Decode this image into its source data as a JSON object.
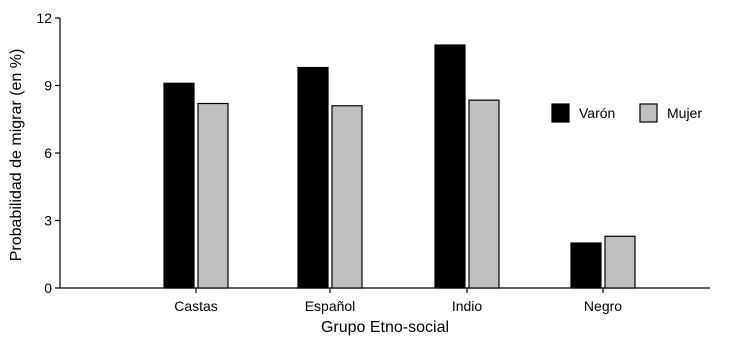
{
  "chart_data": {
    "type": "bar",
    "title": "",
    "xlabel": "Grupo Etno-social",
    "ylabel": "Probabilidad de migrar (en %)",
    "categories": [
      "Castas",
      "Español",
      "Indio",
      "Negro"
    ],
    "series": [
      {
        "name": "Varón",
        "values": [
          9.1,
          9.8,
          10.8,
          2.0
        ],
        "color": "#000000"
      },
      {
        "name": "Mujer",
        "values": [
          8.2,
          8.1,
          8.35,
          2.3
        ],
        "color": "#c0c0c0"
      }
    ],
    "ylim": [
      0,
      12
    ],
    "yticks": [
      "0",
      "3",
      "6",
      "9",
      "12"
    ],
    "grid": false,
    "legend": "right"
  }
}
